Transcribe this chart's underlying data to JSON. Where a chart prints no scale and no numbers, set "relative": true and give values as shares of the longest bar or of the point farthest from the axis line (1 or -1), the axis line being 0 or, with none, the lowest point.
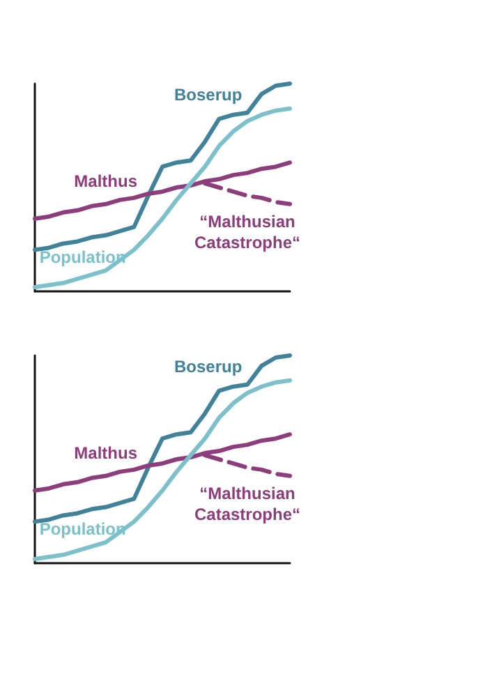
{
  "chart_data": [
    {
      "type": "line",
      "relative": true,
      "tick_labels": false,
      "grid": false,
      "legend": false,
      "marker": "none",
      "categories": [
        null,
        null,
        null,
        null,
        null,
        null,
        null,
        null,
        null,
        null,
        null,
        null,
        null,
        null,
        null,
        null,
        null,
        null,
        null
      ],
      "series": [
        {
          "name": "Boserup",
          "color": "#3f8299",
          "line_style": "solid",
          "values": [
            0.2,
            0.21,
            0.23,
            0.24,
            0.26,
            0.27,
            0.29,
            0.31,
            0.46,
            0.6,
            0.62,
            0.63,
            0.72,
            0.83,
            0.85,
            0.86,
            0.95,
            0.99,
            1.0
          ]
        },
        {
          "name": "Malthus",
          "color": "#8e3d7c",
          "line_style": "solid",
          "values": [
            0.35,
            0.36,
            0.38,
            0.39,
            0.41,
            0.42,
            0.44,
            0.45,
            0.47,
            0.48,
            0.5,
            0.51,
            0.53,
            0.54,
            0.56,
            0.57,
            0.59,
            0.6,
            0.62
          ]
        },
        {
          "name": "Population",
          "color": "#7cc0cb",
          "line_style": "solid",
          "values": [
            0.02,
            0.03,
            0.04,
            0.06,
            0.08,
            0.1,
            0.15,
            0.2,
            0.27,
            0.35,
            0.44,
            0.52,
            0.6,
            0.7,
            0.77,
            0.82,
            0.85,
            0.87,
            0.88
          ]
        },
        {
          "name": "“Malthusian Catastrophe“",
          "color": "#8e3d7c",
          "line_style": "dashed",
          "values": [
            null,
            null,
            null,
            null,
            null,
            null,
            null,
            null,
            null,
            null,
            null,
            null,
            0.52,
            0.5,
            0.48,
            0.46,
            0.45,
            0.43,
            0.42
          ]
        }
      ]
    },
    {
      "type": "line",
      "relative": true,
      "tick_labels": false,
      "grid": false,
      "legend": false,
      "marker": "none",
      "categories": [
        null,
        null,
        null,
        null,
        null,
        null,
        null,
        null,
        null,
        null,
        null,
        null,
        null,
        null,
        null,
        null,
        null,
        null,
        null
      ],
      "series": [
        {
          "name": "Boserup",
          "color": "#3f8299",
          "line_style": "solid",
          "values": [
            0.2,
            0.21,
            0.23,
            0.24,
            0.26,
            0.27,
            0.29,
            0.31,
            0.46,
            0.6,
            0.62,
            0.63,
            0.72,
            0.83,
            0.85,
            0.86,
            0.95,
            0.99,
            1.0
          ]
        },
        {
          "name": "Malthus",
          "color": "#8e3d7c",
          "line_style": "solid",
          "values": [
            0.35,
            0.36,
            0.38,
            0.39,
            0.41,
            0.42,
            0.44,
            0.45,
            0.47,
            0.48,
            0.5,
            0.51,
            0.53,
            0.54,
            0.56,
            0.57,
            0.59,
            0.6,
            0.62
          ]
        },
        {
          "name": "Population",
          "color": "#7cc0cb",
          "line_style": "solid",
          "values": [
            0.02,
            0.03,
            0.04,
            0.06,
            0.08,
            0.1,
            0.15,
            0.2,
            0.27,
            0.35,
            0.44,
            0.52,
            0.6,
            0.7,
            0.77,
            0.82,
            0.85,
            0.87,
            0.88
          ]
        },
        {
          "name": "“Malthusian Catastrophe“",
          "color": "#8e3d7c",
          "line_style": "dashed",
          "values": [
            null,
            null,
            null,
            null,
            null,
            null,
            null,
            null,
            null,
            null,
            null,
            null,
            0.52,
            0.5,
            0.48,
            0.46,
            0.45,
            0.43,
            0.42
          ]
        }
      ]
    }
  ]
}
